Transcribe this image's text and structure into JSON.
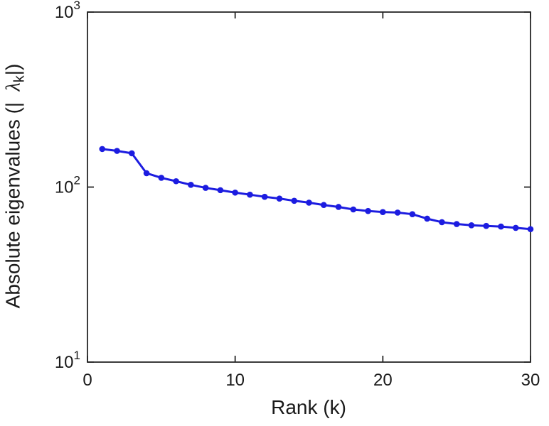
{
  "chart_data": {
    "type": "line",
    "title": "",
    "xlabel": "Rank (k)",
    "ylabel_prefix": "Absolute eigenvalues (|",
    "ylabel_symbol": "λ",
    "ylabel_subscript": "k",
    "ylabel_suffix": "|)",
    "yscale": "log",
    "grid": false,
    "legend": null,
    "xlim": [
      0,
      30
    ],
    "ylim_log_exponents": [
      1,
      3
    ],
    "xticks": [
      0,
      10,
      20,
      30
    ],
    "ytick_exponents": [
      1,
      2,
      3
    ],
    "ytick_base": "10",
    "line_color": "#1c1ce0",
    "axis_color": "#262626",
    "text_color": "#1a1a1a",
    "marker": "circle",
    "x": [
      1,
      2,
      3,
      4,
      5,
      6,
      7,
      8,
      9,
      10,
      11,
      12,
      13,
      14,
      15,
      16,
      17,
      18,
      19,
      20,
      21,
      22,
      23,
      24,
      25,
      26,
      27,
      28,
      29,
      30
    ],
    "values": [
      165,
      161,
      156,
      120,
      113,
      108,
      103,
      99,
      96,
      93,
      90.5,
      88,
      86,
      83.5,
      81.5,
      79,
      77,
      74.5,
      73,
      72,
      71.5,
      70,
      66,
      63,
      61.5,
      60.5,
      60,
      59.5,
      58.5,
      57.5
    ]
  }
}
